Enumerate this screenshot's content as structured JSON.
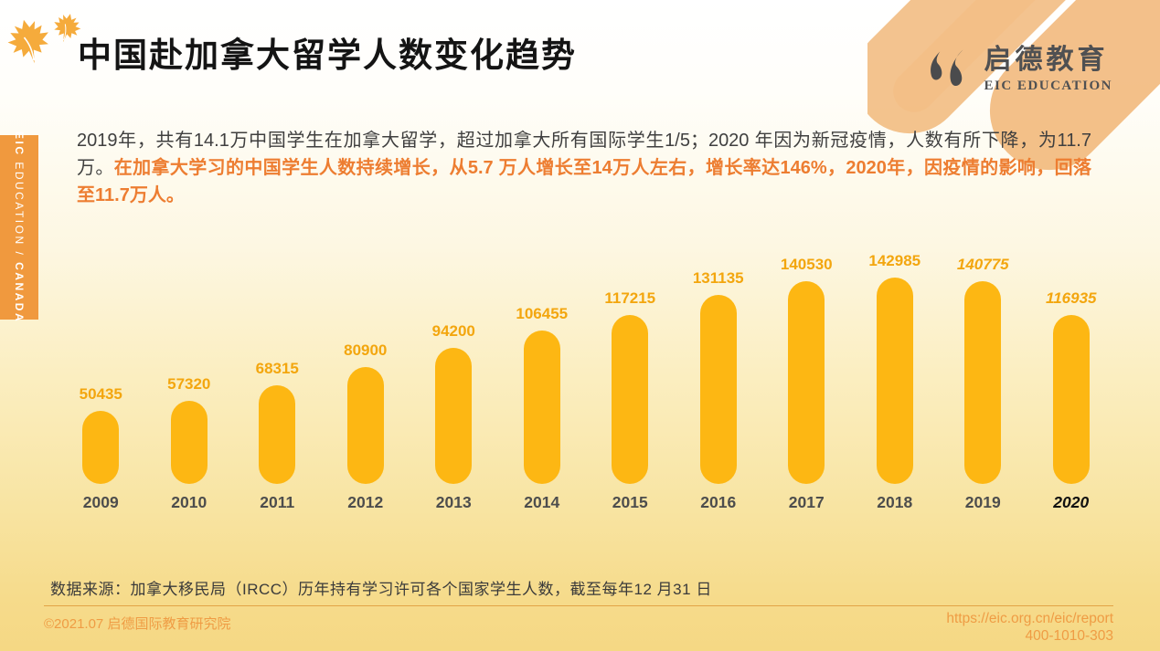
{
  "header": {
    "title": "中国赴加拿大留学人数变化趋势",
    "logo_cn": "启德教育",
    "logo_en": "EIC EDUCATION"
  },
  "sidebar": {
    "part_bold_1": "EIC",
    "part_regular": " EDUCATION / ",
    "part_bold_2": "CANADA"
  },
  "intro": {
    "normal": "2019年，共有14.1万中国学生在加拿大留学，超过加拿大所有国际学生1/5；2020 年因为新冠疫情，人数有所下降，为11.7 万。",
    "highlight": "在加拿大学习的中国学生人数持续增长，从5.7 万人增长至14万人左右，增长率达146%，2020年，因疫情的影响，回落至11.7万人。"
  },
  "chart_data": {
    "type": "bar",
    "title": "中国赴加拿大留学人数变化趋势",
    "xlabel": "",
    "ylabel": "",
    "categories": [
      "2009",
      "2010",
      "2011",
      "2012",
      "2013",
      "2014",
      "2015",
      "2016",
      "2017",
      "2018",
      "2019",
      "2020"
    ],
    "values": [
      50435,
      57320,
      68315,
      80900,
      94200,
      106455,
      117215,
      131135,
      140530,
      142985,
      140775,
      116935
    ],
    "value_labels": [
      "50435",
      "57320",
      "68315",
      "80900",
      "94200",
      "106455",
      "117215",
      "131135",
      "140530",
      "142985",
      "140775",
      "116935"
    ],
    "italic_value_years": [
      "2019",
      "2020"
    ],
    "italic_year_labels": [
      "2020"
    ],
    "bar_color": "#fdb713",
    "value_label_color": "#f3a60e",
    "legend": "none",
    "grid": "off",
    "ylim": [
      0,
      150000
    ]
  },
  "source_line": "数据来源：加拿大移民局（IRCC）历年持有学习许可各个国家学生人数，截至每年12 月31 日",
  "footer": {
    "copyright": "©2021.07 启德国际教育研究院",
    "url": "https://eic.org.cn/eic/report",
    "phone": "400-1010-303"
  },
  "colors": {
    "accent_orange": "#ed7d31",
    "bar_yellow": "#fdb713",
    "sidebar_orange": "#f0993e",
    "footer_text": "#ef9c44"
  }
}
